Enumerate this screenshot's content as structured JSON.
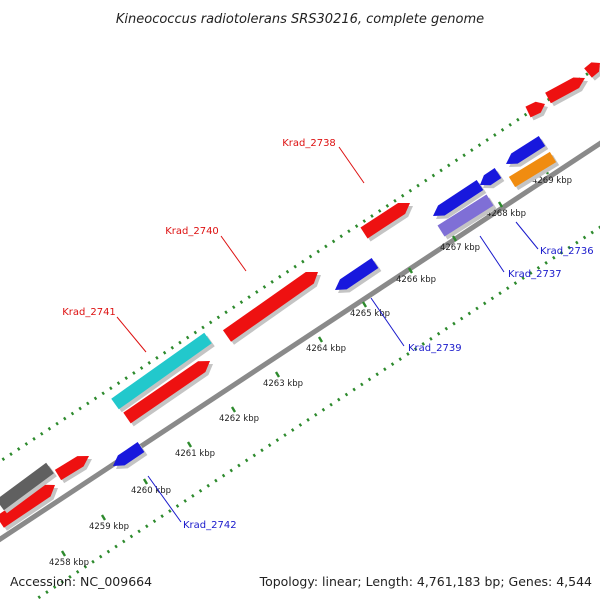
{
  "title": "Kineococcus radiotolerans SRS30216, complete genome",
  "footer": {
    "accession": "Accession: NC_009664",
    "summary": "Topology: linear; Length: 4,761,183 bp; Genes: 4,544"
  },
  "colors": {
    "backbone": "#8a8a8a",
    "tick": "#2d8a2d",
    "forward_gene": "#ee1111",
    "reverse_gene": "#1818dd",
    "rna_cyan": "#22c8cc",
    "other_purple": "#7f6fd6",
    "other_orange": "#f08c10",
    "pseudo_gray": "#606060",
    "label_forward": "#dd1111",
    "label_reverse": "#1a1acc"
  },
  "scale": {
    "tick_labels": [
      "4258 kbp",
      "4259 kbp",
      "4260 kbp",
      "4261 kbp",
      "4262 kbp",
      "4263 kbp",
      "4264 kbp",
      "4265 kbp",
      "4266 kbp",
      "4267 kbp",
      "4268 kbp",
      "4269 kbp"
    ]
  },
  "gene_labels": [
    {
      "text": "Krad_2738",
      "strand": "forward"
    },
    {
      "text": "Krad_2740",
      "strand": "forward"
    },
    {
      "text": "Krad_2741",
      "strand": "forward"
    },
    {
      "text": "Krad_2736",
      "strand": "reverse"
    },
    {
      "text": "Krad_2737",
      "strand": "reverse"
    },
    {
      "text": "Krad_2739",
      "strand": "reverse"
    },
    {
      "text": "Krad_2742",
      "strand": "reverse"
    }
  ]
}
